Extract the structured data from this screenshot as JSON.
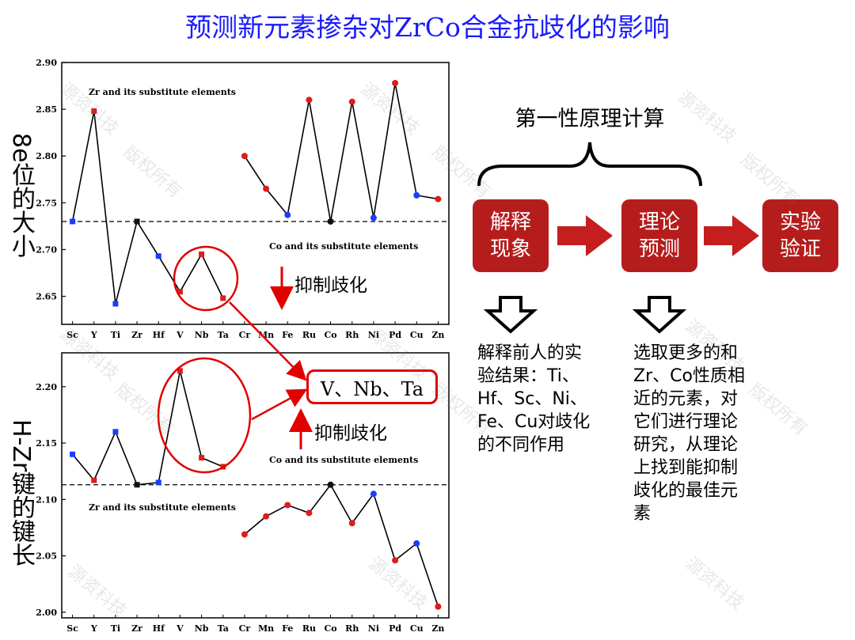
{
  "title": "预测新元素掺杂对ZrCo合金抗歧化的影响",
  "left_labels": {
    "top": "8e位的大小",
    "bottom": "H-Zr键的键长"
  },
  "chart_data": [
    {
      "type": "line",
      "categories": [
        "Sc",
        "Y",
        "Ti",
        "Zr",
        "Hf",
        "V",
        "Nb",
        "Ta",
        "Cr",
        "Mn",
        "Fe",
        "Ru",
        "Co",
        "Rh",
        "Ni",
        "Pd",
        "Cu",
        "Zn"
      ],
      "ylim": [
        2.62,
        2.9
      ],
      "yticks": [
        "2.65",
        "2.70",
        "2.75",
        "2.80",
        "2.85",
        "2.90"
      ],
      "dashed_line": 2.73,
      "zr_series": [
        2.73,
        2.848,
        2.642,
        2.73,
        2.693,
        2.655,
        2.695,
        2.648
      ],
      "zr_colors": [
        "#1a3cff",
        "#e01b1b",
        "#1a3cff",
        "#111111",
        "#1a3cff",
        "#e01b1b",
        "#e01b1b",
        "#e01b1b"
      ],
      "co_series": [
        2.8,
        2.765,
        2.737,
        2.86,
        2.73,
        2.858,
        2.734,
        2.878,
        2.758,
        2.754
      ],
      "co_colors": [
        "#e01b1b",
        "#e01b1b",
        "#1a3cff",
        "#e01b1b",
        "#111111",
        "#e01b1b",
        "#1a3cff",
        "#e01b1b",
        "#1a3cff",
        "#e01b1b"
      ],
      "annotations": [
        "Zr and its substitute elements",
        "Co and its substitute elements"
      ],
      "inhibit_label": "抑制歧化"
    },
    {
      "type": "line",
      "categories": [
        "Sc",
        "Y",
        "Ti",
        "Zr",
        "Hf",
        "V",
        "Nb",
        "Ta",
        "Cr",
        "Mn",
        "Fe",
        "Ru",
        "Co",
        "Rh",
        "Ni",
        "Pd",
        "Cu",
        "Zn"
      ],
      "ylim": [
        1.995,
        2.23
      ],
      "yticks": [
        "2.00",
        "2.05",
        "2.10",
        "2.15",
        "2.20"
      ],
      "dashed_line": 2.113,
      "zr_series": [
        2.14,
        2.117,
        2.16,
        2.113,
        2.115,
        2.214,
        2.137,
        2.129
      ],
      "zr_colors": [
        "#1a3cff",
        "#e01b1b",
        "#1a3cff",
        "#111111",
        "#1a3cff",
        "#e01b1b",
        "#e01b1b",
        "#e01b1b"
      ],
      "co_series": [
        2.069,
        2.085,
        2.095,
        2.088,
        2.113,
        2.079,
        2.105,
        2.046,
        2.061,
        2.005
      ],
      "co_colors": [
        "#e01b1b",
        "#e01b1b",
        "#e01b1b",
        "#e01b1b",
        "#111111",
        "#e01b1b",
        "#1a3cff",
        "#e01b1b",
        "#1a3cff",
        "#e01b1b"
      ],
      "annotations": [
        "Co and its substitute elements",
        "Zr and its substitute elements"
      ],
      "inhibit_label": "抑制歧化"
    }
  ],
  "highlight_box": "V、Nb、Ta",
  "flow": {
    "header": "第一性原理计算",
    "box1": "解释\n现象",
    "box2": "理论\n预测",
    "box3": "实验\n验证",
    "text1": "解释前人的实\n验结果：Ti、\nHf、Sc、Ni、\nFe、Cu对歧化\n的不同作用",
    "text2": "选取更多的和\nZr、Co性质相\n近的元素，对\n它们进行理论\n研究，从理论\n上找到能抑制\n歧化的最佳元\n素"
  },
  "watermark": [
    "源资科技",
    "版权所有"
  ],
  "colors": {
    "title": "#1a1aff",
    "box": "#b51d1d",
    "red": "#e00000"
  }
}
